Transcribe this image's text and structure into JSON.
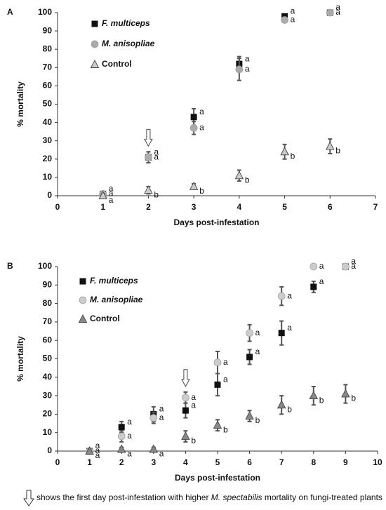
{
  "chart_data": [
    {
      "type": "scatter",
      "label": "A",
      "xlabel": "Days post-infestation",
      "ylabel": "% mortality",
      "x": [
        1,
        2,
        3,
        4,
        5,
        6
      ],
      "xlim": [
        0,
        7
      ],
      "xticks": [
        0,
        1,
        2,
        3,
        4,
        5,
        6,
        7
      ],
      "ylim": [
        0,
        100
      ],
      "yticks": [
        0,
        10,
        20,
        30,
        40,
        50,
        60,
        70,
        80,
        90,
        100
      ],
      "arrow_day": 2,
      "series": [
        {
          "name": "F. multiceps",
          "italic": true,
          "marker": "square",
          "color": "#111111",
          "values": [
            1,
            21,
            43,
            72,
            98,
            100
          ],
          "errors": [
            1,
            3,
            4.5,
            4,
            1,
            0
          ],
          "letters": [
            "a",
            "a",
            "a",
            "a",
            "a",
            "a"
          ]
        },
        {
          "name": "M. anisopliae",
          "italic": true,
          "marker": "circle",
          "color": "#aaaaaa",
          "values": [
            1,
            21,
            37,
            69,
            96,
            100
          ],
          "errors": [
            1,
            3,
            3.5,
            6,
            1,
            0
          ],
          "letters": [
            "a",
            "a",
            "a",
            "a",
            "a",
            "a"
          ]
        },
        {
          "name": "Control",
          "italic": false,
          "marker": "triangle",
          "color": "#cccccc",
          "values": [
            0,
            3,
            5,
            11,
            24,
            27
          ],
          "errors": [
            1,
            2,
            1.5,
            3,
            4,
            4
          ],
          "letters": [
            "a",
            "b",
            "b",
            "b",
            "b",
            "b"
          ]
        }
      ]
    },
    {
      "type": "scatter",
      "label": "B",
      "xlabel": "Days post-infestation",
      "ylabel": "% mortality",
      "x": [
        1,
        2,
        3,
        4,
        5,
        6,
        7,
        8,
        9
      ],
      "xlim": [
        0,
        10
      ],
      "xticks": [
        0,
        1,
        2,
        3,
        4,
        5,
        6,
        7,
        8,
        9,
        10
      ],
      "ylim": [
        0,
        100
      ],
      "yticks": [
        0,
        10,
        20,
        30,
        40,
        50,
        60,
        70,
        80,
        90,
        100
      ],
      "arrow_day": 4,
      "series": [
        {
          "name": "F. multiceps",
          "italic": true,
          "marker": "square",
          "color": "#111111",
          "values": [
            0,
            13,
            20,
            22,
            36,
            51,
            64,
            89,
            100
          ],
          "errors": [
            0,
            3,
            4,
            4,
            6,
            4,
            6.5,
            3,
            0
          ],
          "letters": [
            "a",
            "a",
            "a",
            "a",
            "a",
            "a",
            "a",
            "a",
            "a"
          ]
        },
        {
          "name": "M. anisopliae",
          "italic": true,
          "marker": "circle",
          "color": "#cccccc",
          "values": [
            0,
            8,
            18,
            29,
            48,
            64,
            84,
            100,
            100
          ],
          "errors": [
            0,
            3,
            3,
            3,
            6,
            4.5,
            5,
            0,
            0
          ],
          "letters": [
            "a",
            "a",
            "a",
            "a",
            "a",
            "a",
            "a",
            "a",
            "a"
          ]
        },
        {
          "name": "Control",
          "italic": false,
          "marker": "triangle",
          "color": "#888888",
          "values": [
            0,
            1,
            1,
            8,
            14,
            19,
            25,
            30,
            31
          ],
          "errors": [
            1,
            1,
            1,
            3,
            3,
            3,
            5,
            5,
            5
          ],
          "letters": [
            "a",
            "a",
            "a",
            "b",
            "b",
            "b",
            "b",
            "b",
            "b"
          ]
        }
      ]
    }
  ],
  "footnote": [
    "shows the first day post-infestation with higher ",
    "M. spectabilis",
    " mortality on fungi-treated plants"
  ]
}
